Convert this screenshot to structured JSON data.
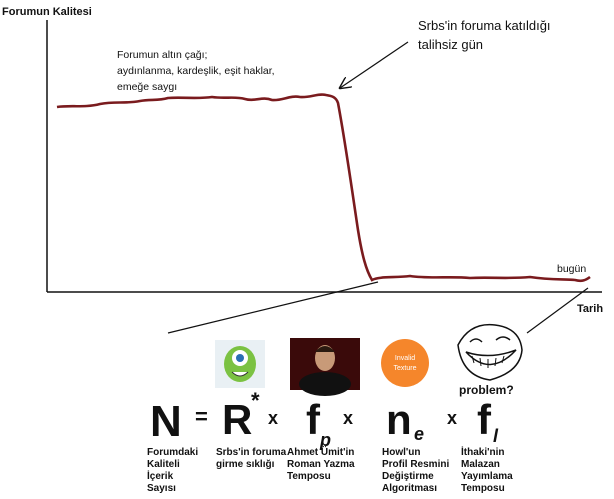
{
  "chart": {
    "y_axis_label": "Forumun Kalitesi",
    "x_axis_label": "Tarih",
    "golden_age": [
      "Forumun altın çağı;",
      "aydınlanma, kardeşlik, eşit haklar,",
      "emeğe saygı"
    ],
    "joined": [
      "Srbs'in foruma katıldığı",
      "talihsiz gün"
    ],
    "today": "bugün"
  },
  "formula": {
    "lhs": {
      "symbol": "N",
      "label": [
        "Forumdaki",
        "Kaliteli",
        "İçerik",
        "Sayısı"
      ]
    },
    "equals": "=",
    "operators": [
      "x",
      "x",
      "x"
    ],
    "terms": [
      {
        "symbol": "R",
        "superscript": "*",
        "label": [
          "Srbs'in foruma",
          "girme sıklığı"
        ]
      },
      {
        "symbol": "f",
        "subscript": "p",
        "label": [
          "Ahmet Ümit'in",
          "Roman Yazma",
          "Temposu"
        ]
      },
      {
        "symbol": "n",
        "subscript": "e",
        "label": [
          "Howl'un",
          "Profil Resmini",
          "Değiştirme",
          "Algoritması"
        ]
      },
      {
        "symbol": "f",
        "subscript": "l",
        "label": [
          "İthaki'nin",
          "Malazan",
          "Yayımlama",
          "Temposu"
        ]
      }
    ]
  },
  "images": {
    "texture": [
      "Invalid",
      "Texture"
    ],
    "troll": "problem?"
  }
}
